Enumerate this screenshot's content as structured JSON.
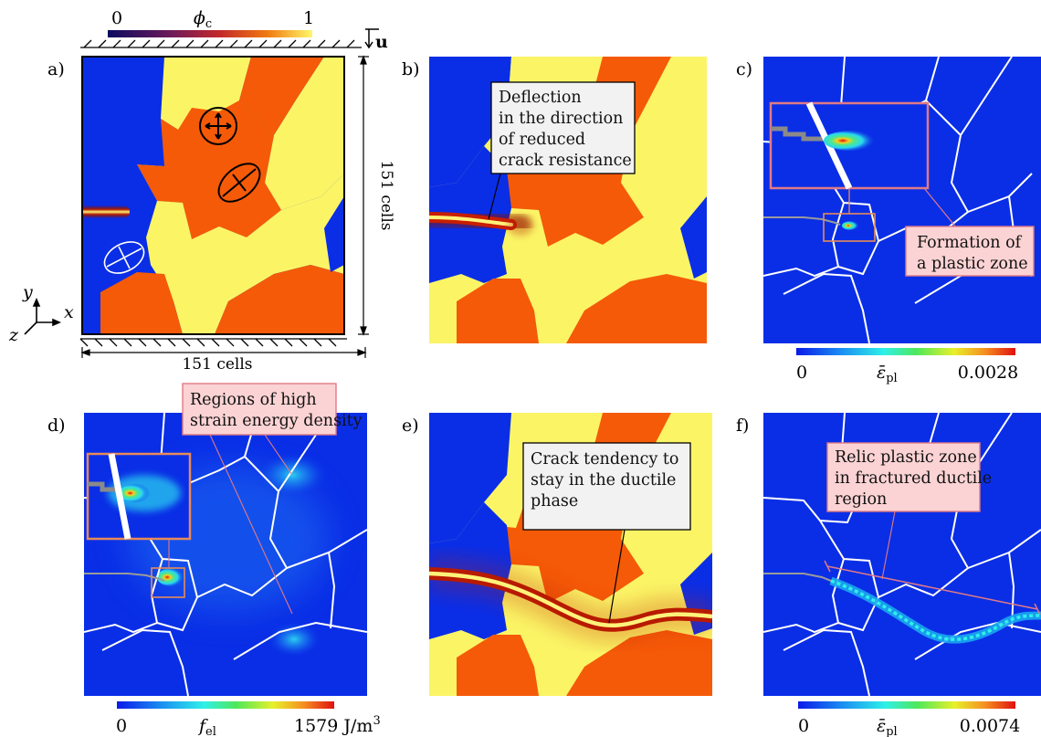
{
  "colorbars": {
    "phi": {
      "min": "0",
      "max": "1",
      "symbol": "ϕ",
      "sub": "c"
    },
    "c": {
      "min": "0",
      "max": "0.0028",
      "symbol": "ε̄",
      "sub": "pl"
    },
    "d": {
      "min": "0",
      "max": "1579 J/m",
      "sup": "3",
      "symbol": "f",
      "sub": "el"
    },
    "f": {
      "min": "0",
      "max": "0.0074",
      "symbol": "ε̄",
      "sub": "pl"
    }
  },
  "panels": {
    "a": {
      "label": "a)",
      "dim_bottom": "151 cells",
      "dim_right": "151 cells",
      "load": "u"
    },
    "b": {
      "label": "b)"
    },
    "c": {
      "label": "c)"
    },
    "d": {
      "label": "d)"
    },
    "e": {
      "label": "e)"
    },
    "f": {
      "label": "f)"
    }
  },
  "axes": {
    "x": "x",
    "y": "y",
    "z": "z"
  },
  "callouts": {
    "b": [
      "Deflection",
      "in the direction",
      "of reduced",
      "crack resistance"
    ],
    "c": [
      "Formation of",
      "a plastic zone"
    ],
    "d": [
      "Regions of high",
      "strain energy density"
    ],
    "e": [
      "Crack tendency to",
      "stay in the ductile",
      "phase"
    ],
    "f": [
      "Relic plastic zone",
      "in fractured ductile",
      "region"
    ]
  },
  "colors": {
    "blue_phase": "#0a2ee6",
    "yellow_phase": "#fbf566",
    "orange_phase": "#f55a08",
    "crack_core": "#fff27a",
    "crack_edge": "#9a0a00",
    "grain_boundary": "#ffffff",
    "pink_callout_fill": "#fcd3d4",
    "pink_callout_stroke": "#e07a86",
    "grey_callout_fill": "#f2f2f2"
  }
}
